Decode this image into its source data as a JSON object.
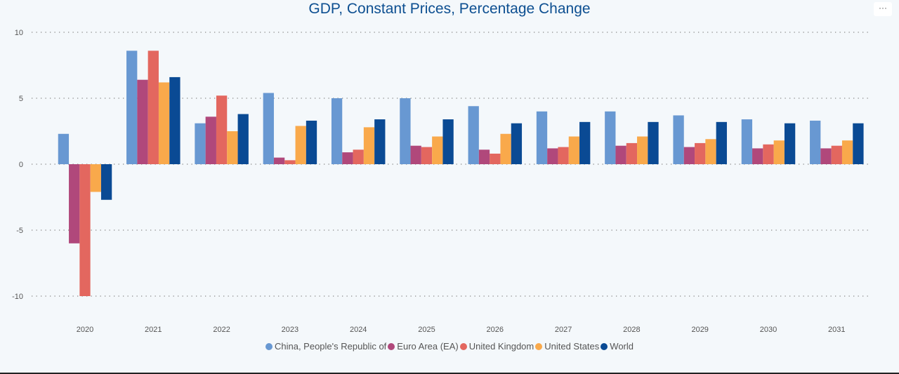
{
  "menu_icon": "ellipsis-icon",
  "menu_label": "···",
  "chart_data": {
    "type": "bar",
    "title": "GDP, Constant Prices, Percentage Change",
    "xlabel": "",
    "ylabel": "",
    "ylim": [
      -10,
      10
    ],
    "yticks": [
      10,
      5,
      0,
      -5,
      -10
    ],
    "grid": true,
    "legend_position": "bottom",
    "categories": [
      "2020",
      "2021",
      "2022",
      "2023",
      "2024",
      "2025",
      "2026",
      "2027",
      "2028",
      "2029",
      "2030",
      "2031"
    ],
    "series": [
      {
        "name": "China, People's Republic of",
        "color": "#6898d2",
        "values": [
          2.3,
          8.6,
          3.1,
          5.4,
          5.0,
          5.0,
          4.4,
          4.0,
          4.0,
          3.7,
          3.4,
          3.3
        ]
      },
      {
        "name": "Euro Area (EA)",
        "color": "#b0487b",
        "values": [
          -6.0,
          6.4,
          3.6,
          0.5,
          0.9,
          1.4,
          1.1,
          1.2,
          1.4,
          1.3,
          1.2,
          1.2
        ]
      },
      {
        "name": "United Kingdom",
        "color": "#e3675f",
        "values": [
          -10.0,
          8.6,
          5.2,
          0.3,
          1.1,
          1.3,
          0.8,
          1.3,
          1.6,
          1.6,
          1.5,
          1.4
        ]
      },
      {
        "name": "United States",
        "color": "#f9a94b",
        "values": [
          -2.1,
          6.2,
          2.5,
          2.9,
          2.8,
          2.1,
          2.3,
          2.1,
          2.1,
          1.9,
          1.8,
          1.8
        ]
      },
      {
        "name": "World",
        "color": "#0a4a94",
        "values": [
          -2.7,
          6.6,
          3.8,
          3.3,
          3.4,
          3.4,
          3.1,
          3.2,
          3.2,
          3.2,
          3.1,
          3.1
        ]
      }
    ]
  }
}
